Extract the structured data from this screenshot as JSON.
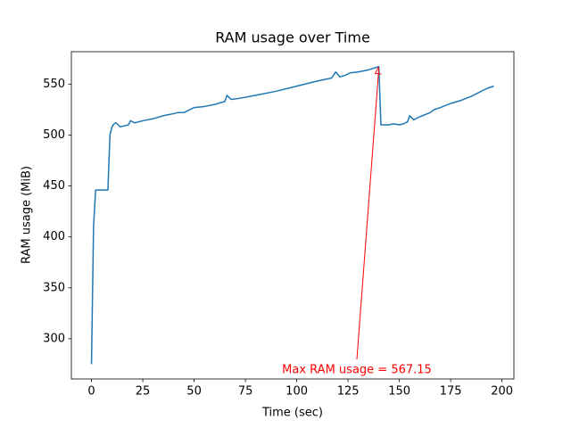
{
  "chart_data": {
    "type": "line",
    "title": "RAM usage over Time",
    "xlabel": "Time (sec)",
    "ylabel": "RAM usage (MiB)",
    "x": [
      0,
      1,
      2,
      8,
      9,
      10,
      11,
      12,
      13,
      14,
      18,
      19,
      21,
      25,
      30,
      35,
      40,
      42,
      45,
      48,
      50,
      55,
      60,
      65,
      66,
      68,
      72,
      80,
      90,
      100,
      110,
      117,
      119,
      121,
      124,
      126,
      130,
      135,
      140,
      141,
      145,
      147,
      150,
      152,
      154,
      155,
      157,
      160,
      165,
      167,
      170,
      175,
      180,
      185,
      190,
      193,
      196
    ],
    "values": [
      275,
      410,
      446,
      446,
      500,
      508,
      511,
      512,
      510,
      508,
      510,
      514,
      512,
      514,
      516,
      519,
      521,
      522,
      522,
      525,
      527,
      528,
      530,
      533,
      539,
      535,
      536,
      539,
      543,
      548,
      553,
      556,
      562,
      557,
      559,
      561,
      562,
      564,
      567.15,
      510,
      510,
      511,
      510,
      511,
      513,
      519,
      515,
      518,
      522,
      525,
      527,
      531,
      534,
      538,
      543,
      546,
      548
    ],
    "color": "#1f77b4",
    "xlim": [
      -9.8,
      205.8
    ],
    "ylim": [
      260.5,
      581.8
    ],
    "xticks": [
      0,
      25,
      50,
      75,
      100,
      125,
      150,
      175,
      200
    ],
    "yticks": [
      300,
      350,
      400,
      450,
      500,
      550
    ],
    "grid": false,
    "annotation": {
      "text": "Max RAM usage = 567.15",
      "x": 140,
      "y": 567.15,
      "color": "#ff0000"
    }
  }
}
